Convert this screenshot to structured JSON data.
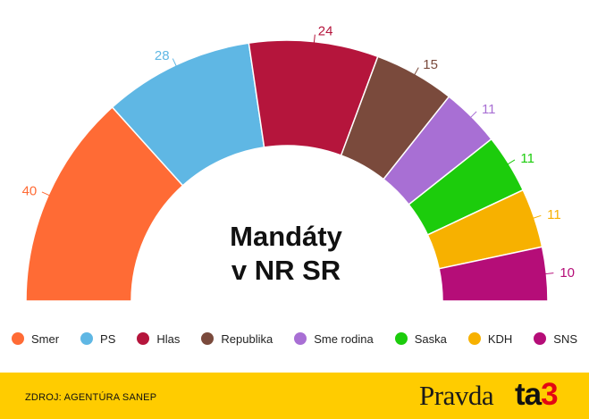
{
  "chart_data": {
    "type": "parliament",
    "title_lines": [
      "Mandáty",
      "v NR SR"
    ],
    "parties": [
      {
        "name": "Smer",
        "seats": 40,
        "color": "#ff6b35"
      },
      {
        "name": "PS",
        "seats": 28,
        "color": "#5fb7e4"
      },
      {
        "name": "Hlas",
        "seats": 24,
        "color": "#b5153c"
      },
      {
        "name": "Republika",
        "seats": 15,
        "color": "#7a4a3c"
      },
      {
        "name": "Sme rodina",
        "seats": 11,
        "color": "#a86fd4"
      },
      {
        "name": "Saska",
        "seats": 11,
        "color": "#1ccc0c"
      },
      {
        "name": "KDH",
        "seats": 11,
        "color": "#f7b100"
      },
      {
        "name": "SNS",
        "seats": 10,
        "color": "#b50d78"
      }
    ],
    "total_seats": 150
  },
  "footer": {
    "source": "ZDROJ: AGENTÚRA SANEP",
    "logo_pravda": "Pravda",
    "logo_ta3_prefix": "ta",
    "logo_ta3_suffix": "3",
    "background": "#ffcc00"
  }
}
